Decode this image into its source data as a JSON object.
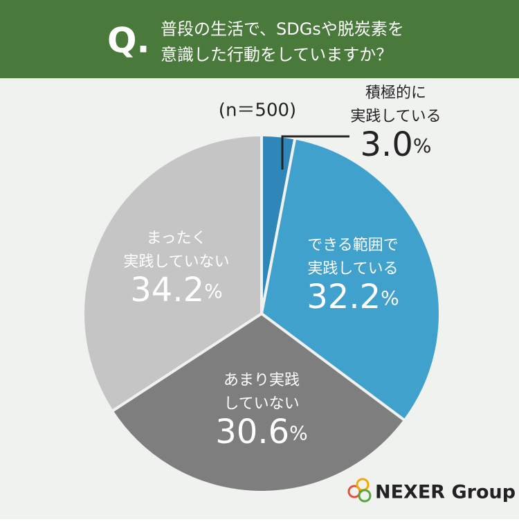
{
  "header": {
    "mark": "Q.",
    "question": [
      "普段の生活で、SDGsや脱炭素を",
      "意識した行動をしていますか？"
    ]
  },
  "chart_data": {
    "type": "pie",
    "note": "(n＝500)",
    "categories": [
      [
        "積極的に",
        "実践している"
      ],
      [
        "できる範囲で",
        "実践している"
      ],
      [
        "あまり実践",
        "していない"
      ],
      [
        "まったく",
        "実践していない"
      ]
    ],
    "values": [
      3.0,
      32.2,
      30.6,
      34.2
    ],
    "value_labels": [
      "3.0",
      "32.2",
      "30.6",
      "34.2"
    ],
    "unit": "%",
    "colors": [
      "#2e86b9",
      "#41a1cd",
      "#7e7e7e",
      "#c5c5c5"
    ]
  },
  "footer": {
    "logo": "NEXER Group"
  }
}
